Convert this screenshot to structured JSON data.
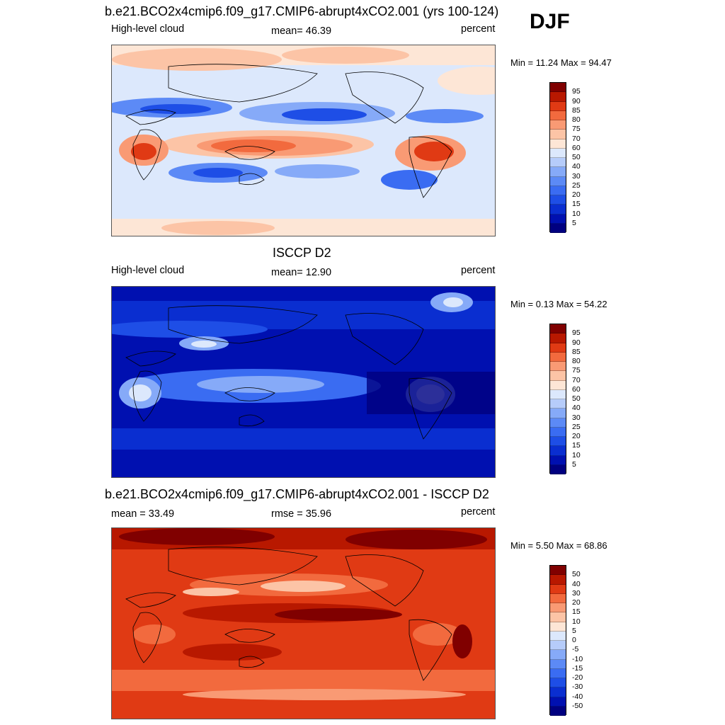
{
  "season": "DJF",
  "panels": [
    {
      "title": "b.e21.BCO2x4cmip6.f09_g17.CMIP6-abrupt4xCO2.001 (yrs 100-124)",
      "left_label": "High-level cloud",
      "center_label": "mean=  46.39",
      "right_label": "percent",
      "minmax": "Min =  11.24 Max =  94.47",
      "scale": "abs",
      "ticks": [
        "95",
        "90",
        "85",
        "80",
        "75",
        "70",
        "60",
        "50",
        "40",
        "30",
        "25",
        "20",
        "15",
        "10",
        "5"
      ]
    },
    {
      "title": "ISCCP D2",
      "left_label": "High-level cloud",
      "center_label": "mean=  12.90",
      "right_label": "percent",
      "minmax": "Min =   0.13 Max =  54.22",
      "scale": "abs",
      "ticks": [
        "95",
        "90",
        "85",
        "80",
        "75",
        "70",
        "60",
        "50",
        "40",
        "30",
        "25",
        "20",
        "15",
        "10",
        "5"
      ]
    },
    {
      "title": "b.e21.BCO2x4cmip6.f09_g17.CMIP6-abrupt4xCO2.001 - ISCCP D2",
      "left_label": "mean =  33.49",
      "center_label": "rmse =  35.96",
      "right_label": "percent",
      "minmax": "Min =   5.50 Max =  68.86",
      "scale": "diff",
      "ticks": [
        "50",
        "40",
        "30",
        "20",
        "15",
        "10",
        "5",
        "0",
        "-5",
        "-10",
        "-15",
        "-20",
        "-30",
        "-40",
        "-50"
      ]
    }
  ],
  "colors": {
    "scale": [
      "#000080",
      "#0010b0",
      "#0a2ed0",
      "#1e4ee6",
      "#3a6cf2",
      "#5c8af6",
      "#86aaf8",
      "#b6ccfa",
      "#dce8fc",
      "#fde6d6",
      "#fcc4a6",
      "#f99a74",
      "#f26a3e",
      "#e03a14",
      "#b81800",
      "#800000"
    ]
  }
}
